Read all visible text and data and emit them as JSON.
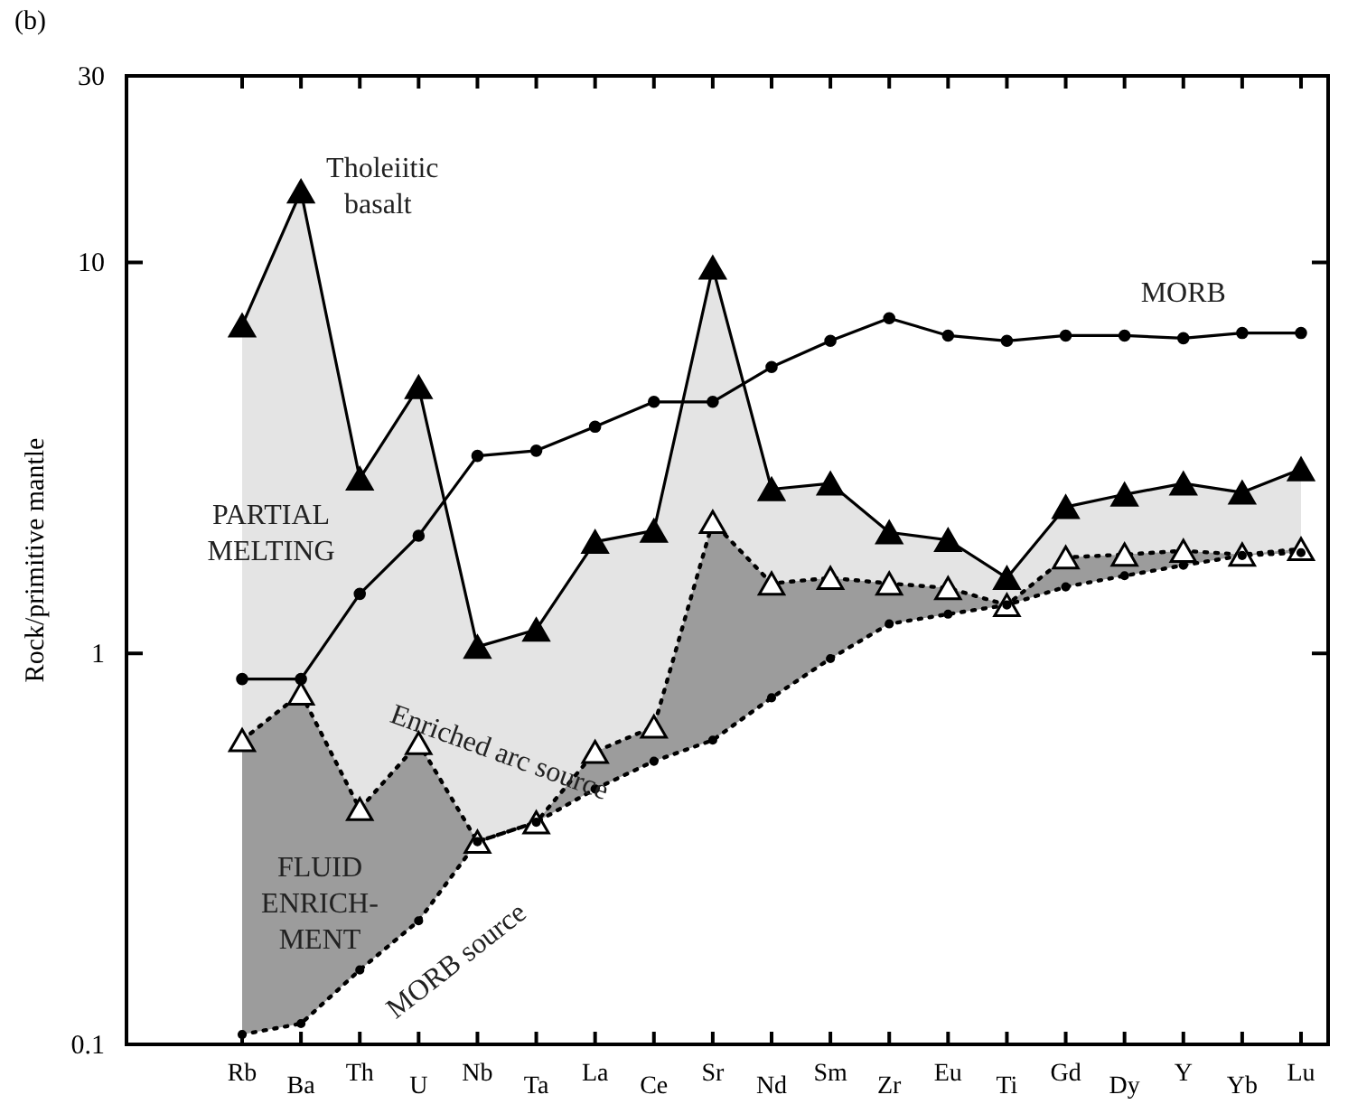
{
  "chart_data": {
    "type": "line",
    "title": "(b)",
    "ylabel": "Rock/primitive mantle",
    "categories": [
      "Rb",
      "Ba",
      "Th",
      "U",
      "Nb",
      "Ta",
      "La",
      "Ce",
      "Sr",
      "Nd",
      "Sm",
      "Zr",
      "Eu",
      "Ti",
      "Gd",
      "Dy",
      "Y",
      "Yb",
      "Lu"
    ],
    "series": [
      {
        "name": "Tholeiitic basalt",
        "color": "#000000",
        "marker": "triangle",
        "line_style": "solid",
        "values": [
          6.9,
          15.2,
          2.8,
          4.8,
          1.04,
          1.15,
          1.93,
          2.06,
          9.7,
          2.63,
          2.72,
          2.04,
          1.95,
          1.56,
          2.37,
          2.55,
          2.72,
          2.58,
          2.96
        ],
        "upper": [
          6.9,
          15.2,
          2.8,
          4.8,
          1.04,
          1.15,
          1.93,
          2.06,
          9.7,
          2.63,
          2.72,
          2.04,
          1.95,
          1.56,
          2.37,
          2.55,
          2.72,
          2.58,
          2.96
        ],
        "lower": [
          0.6,
          0.79,
          0.4,
          0.59,
          0.33,
          0.37,
          0.56,
          0.65,
          2.17,
          1.51,
          1.56,
          1.51,
          1.47,
          1.33,
          1.76,
          1.79,
          1.83,
          1.79,
          1.85
        ]
      },
      {
        "name": "MORB",
        "color": "#000000",
        "marker": "circle",
        "line_style": "solid",
        "values": [
          0.86,
          0.86,
          1.42,
          2.0,
          3.2,
          3.3,
          3.8,
          4.4,
          4.4,
          5.4,
          6.3,
          7.2,
          6.5,
          6.3,
          6.5,
          6.5,
          6.4,
          6.6,
          6.6
        ]
      },
      {
        "name": "Enriched arc source",
        "color": "#000000",
        "marker": "triangle",
        "line_style": "dotted",
        "values": [
          0.6,
          0.79,
          0.4,
          0.59,
          0.33,
          0.37,
          0.56,
          0.65,
          2.17,
          1.51,
          1.56,
          1.51,
          1.47,
          1.33,
          1.76,
          1.79,
          1.83,
          1.79,
          1.85
        ],
        "upper": [
          0.6,
          0.79,
          0.4,
          0.59,
          0.33,
          0.37,
          0.56,
          0.65,
          2.17,
          1.51,
          1.56,
          1.51,
          1.47,
          1.33,
          1.76,
          1.79,
          1.83,
          1.79,
          1.85
        ],
        "lower": [
          0.106,
          0.113,
          0.155,
          0.207,
          0.33,
          0.37,
          0.45,
          0.53,
          0.6,
          0.77,
          0.97,
          1.19,
          1.26,
          1.33,
          1.48,
          1.58,
          1.68,
          1.78,
          1.81
        ]
      },
      {
        "name": "MORB source",
        "color": "#000000",
        "marker": "circle",
        "line_style": "dotted",
        "values": [
          0.106,
          0.113,
          0.155,
          0.207,
          0.33,
          0.37,
          0.45,
          0.53,
          0.6,
          0.77,
          0.97,
          1.19,
          1.26,
          1.33,
          1.48,
          1.58,
          1.68,
          1.78,
          1.81
        ]
      }
    ],
    "annotations": [
      "PARTIAL\nMELTING",
      "FLUID\nENRICH-\nMENT"
    ],
    "log": true,
    "ylim": [
      0.1,
      30
    ],
    "yticks": [
      0.1,
      1,
      10,
      30
    ],
    "grid": false,
    "legend": false
  }
}
